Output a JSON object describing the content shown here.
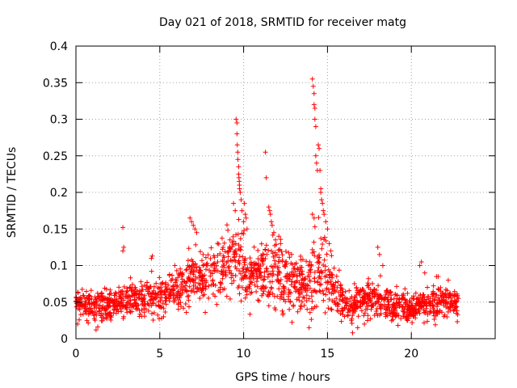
{
  "chart_data": {
    "type": "scatter",
    "title": "Day 021 of 2018, SRMTID for receiver matg",
    "xlabel": "GPS time / hours",
    "ylabel": "SRMTID / TECUs",
    "xlim": [
      0,
      25
    ],
    "ylim": [
      0,
      0.4
    ],
    "grid": true,
    "marker": "+",
    "color": "#ff0000",
    "x_ticks": [
      0,
      5,
      10,
      15,
      20
    ],
    "x_tick_labels": [
      "0",
      "5",
      "10",
      "15",
      "20"
    ],
    "y_ticks": [
      0,
      0.05,
      0.1,
      0.15,
      0.2,
      0.25,
      0.3,
      0.35,
      0.4
    ],
    "y_tick_labels": [
      "0",
      "0.05",
      "0.1",
      "0.15",
      "0.2",
      "0.25",
      "0.3",
      "0.35",
      "0.4"
    ],
    "series": [
      {
        "name": "SRMTID",
        "envelope": [
          [
            0.0,
            0.045,
            0.012
          ],
          [
            0.5,
            0.045,
            0.014
          ],
          [
            1.0,
            0.045,
            0.015
          ],
          [
            1.5,
            0.042,
            0.014
          ],
          [
            2.0,
            0.045,
            0.013
          ],
          [
            2.5,
            0.05,
            0.014
          ],
          [
            3.0,
            0.052,
            0.016
          ],
          [
            3.5,
            0.055,
            0.016
          ],
          [
            4.0,
            0.055,
            0.016
          ],
          [
            4.5,
            0.06,
            0.02
          ],
          [
            5.0,
            0.055,
            0.02
          ],
          [
            5.5,
            0.065,
            0.018
          ],
          [
            6.0,
            0.07,
            0.02
          ],
          [
            6.5,
            0.075,
            0.025
          ],
          [
            7.0,
            0.09,
            0.028
          ],
          [
            7.5,
            0.085,
            0.025
          ],
          [
            8.0,
            0.09,
            0.028
          ],
          [
            8.5,
            0.095,
            0.03
          ],
          [
            9.0,
            0.105,
            0.03
          ],
          [
            9.5,
            0.11,
            0.035
          ],
          [
            10.0,
            0.095,
            0.03
          ],
          [
            10.5,
            0.085,
            0.03
          ],
          [
            11.0,
            0.09,
            0.03
          ],
          [
            11.5,
            0.095,
            0.035
          ],
          [
            12.0,
            0.09,
            0.03
          ],
          [
            12.5,
            0.085,
            0.03
          ],
          [
            13.0,
            0.08,
            0.028
          ],
          [
            13.5,
            0.075,
            0.025
          ],
          [
            14.0,
            0.085,
            0.03
          ],
          [
            14.5,
            0.1,
            0.035
          ],
          [
            15.0,
            0.085,
            0.028
          ],
          [
            15.5,
            0.06,
            0.022
          ],
          [
            16.0,
            0.05,
            0.018
          ],
          [
            16.5,
            0.045,
            0.016
          ],
          [
            17.0,
            0.05,
            0.018
          ],
          [
            17.5,
            0.055,
            0.018
          ],
          [
            18.0,
            0.055,
            0.018
          ],
          [
            18.5,
            0.05,
            0.016
          ],
          [
            19.0,
            0.045,
            0.015
          ],
          [
            19.5,
            0.042,
            0.014
          ],
          [
            20.0,
            0.04,
            0.013
          ],
          [
            20.5,
            0.045,
            0.015
          ],
          [
            21.0,
            0.048,
            0.015
          ],
          [
            21.5,
            0.045,
            0.015
          ],
          [
            22.0,
            0.05,
            0.015
          ],
          [
            22.5,
            0.048,
            0.014
          ],
          [
            22.8,
            0.045,
            0.013
          ]
        ],
        "points": [
          [
            2.8,
            0.152
          ],
          [
            2.8,
            0.12
          ],
          [
            2.85,
            0.125
          ],
          [
            4.5,
            0.11
          ],
          [
            4.55,
            0.113
          ],
          [
            6.8,
            0.165
          ],
          [
            6.9,
            0.16
          ],
          [
            7.0,
            0.155
          ],
          [
            7.1,
            0.15
          ],
          [
            7.2,
            0.145
          ],
          [
            9.4,
            0.185
          ],
          [
            9.5,
            0.175
          ],
          [
            9.55,
            0.3
          ],
          [
            9.6,
            0.295
          ],
          [
            9.6,
            0.28
          ],
          [
            9.62,
            0.265
          ],
          [
            9.65,
            0.255
          ],
          [
            9.66,
            0.245
          ],
          [
            9.7,
            0.235
          ],
          [
            9.7,
            0.225
          ],
          [
            9.72,
            0.22
          ],
          [
            9.74,
            0.215
          ],
          [
            9.75,
            0.21
          ],
          [
            9.76,
            0.205
          ],
          [
            9.8,
            0.2
          ],
          [
            9.85,
            0.19
          ],
          [
            9.9,
            0.175
          ],
          [
            10.0,
            0.16
          ],
          [
            10.05,
            0.185
          ],
          [
            10.1,
            0.17
          ],
          [
            10.15,
            0.165
          ],
          [
            10.2,
            0.15
          ],
          [
            11.3,
            0.255
          ],
          [
            11.35,
            0.22
          ],
          [
            11.5,
            0.18
          ],
          [
            11.55,
            0.175
          ],
          [
            11.6,
            0.17
          ],
          [
            11.65,
            0.16
          ],
          [
            11.7,
            0.155
          ],
          [
            11.8,
            0.145
          ],
          [
            11.9,
            0.135
          ],
          [
            12.1,
            0.14
          ],
          [
            12.2,
            0.13
          ],
          [
            13.9,
            0.015
          ],
          [
            14.1,
            0.355
          ],
          [
            14.15,
            0.345
          ],
          [
            14.2,
            0.335
          ],
          [
            14.2,
            0.32
          ],
          [
            14.25,
            0.315
          ],
          [
            14.25,
            0.3
          ],
          [
            14.3,
            0.29
          ],
          [
            14.3,
            0.25
          ],
          [
            14.35,
            0.24
          ],
          [
            14.4,
            0.23
          ],
          [
            14.45,
            0.265
          ],
          [
            14.5,
            0.26
          ],
          [
            14.55,
            0.23
          ],
          [
            14.6,
            0.205
          ],
          [
            14.6,
            0.2
          ],
          [
            14.65,
            0.19
          ],
          [
            14.7,
            0.185
          ],
          [
            14.75,
            0.175
          ],
          [
            14.8,
            0.17
          ],
          [
            14.9,
            0.16
          ],
          [
            15.0,
            0.15
          ],
          [
            15.1,
            0.13
          ],
          [
            15.2,
            0.12
          ],
          [
            14.1,
            0.17
          ],
          [
            14.2,
            0.165
          ],
          [
            16.5,
            0.008
          ],
          [
            16.8,
            0.015
          ],
          [
            17.2,
            0.02
          ],
          [
            18.0,
            0.125
          ],
          [
            18.1,
            0.115
          ],
          [
            18.3,
            0.1
          ],
          [
            20.5,
            0.1
          ],
          [
            20.6,
            0.105
          ],
          [
            20.8,
            0.09
          ],
          [
            21.5,
            0.085
          ],
          [
            21.6,
            0.085
          ],
          [
            22.2,
            0.08
          ],
          [
            0.1,
            0.02
          ],
          [
            1.2,
            0.012
          ]
        ]
      }
    ]
  }
}
